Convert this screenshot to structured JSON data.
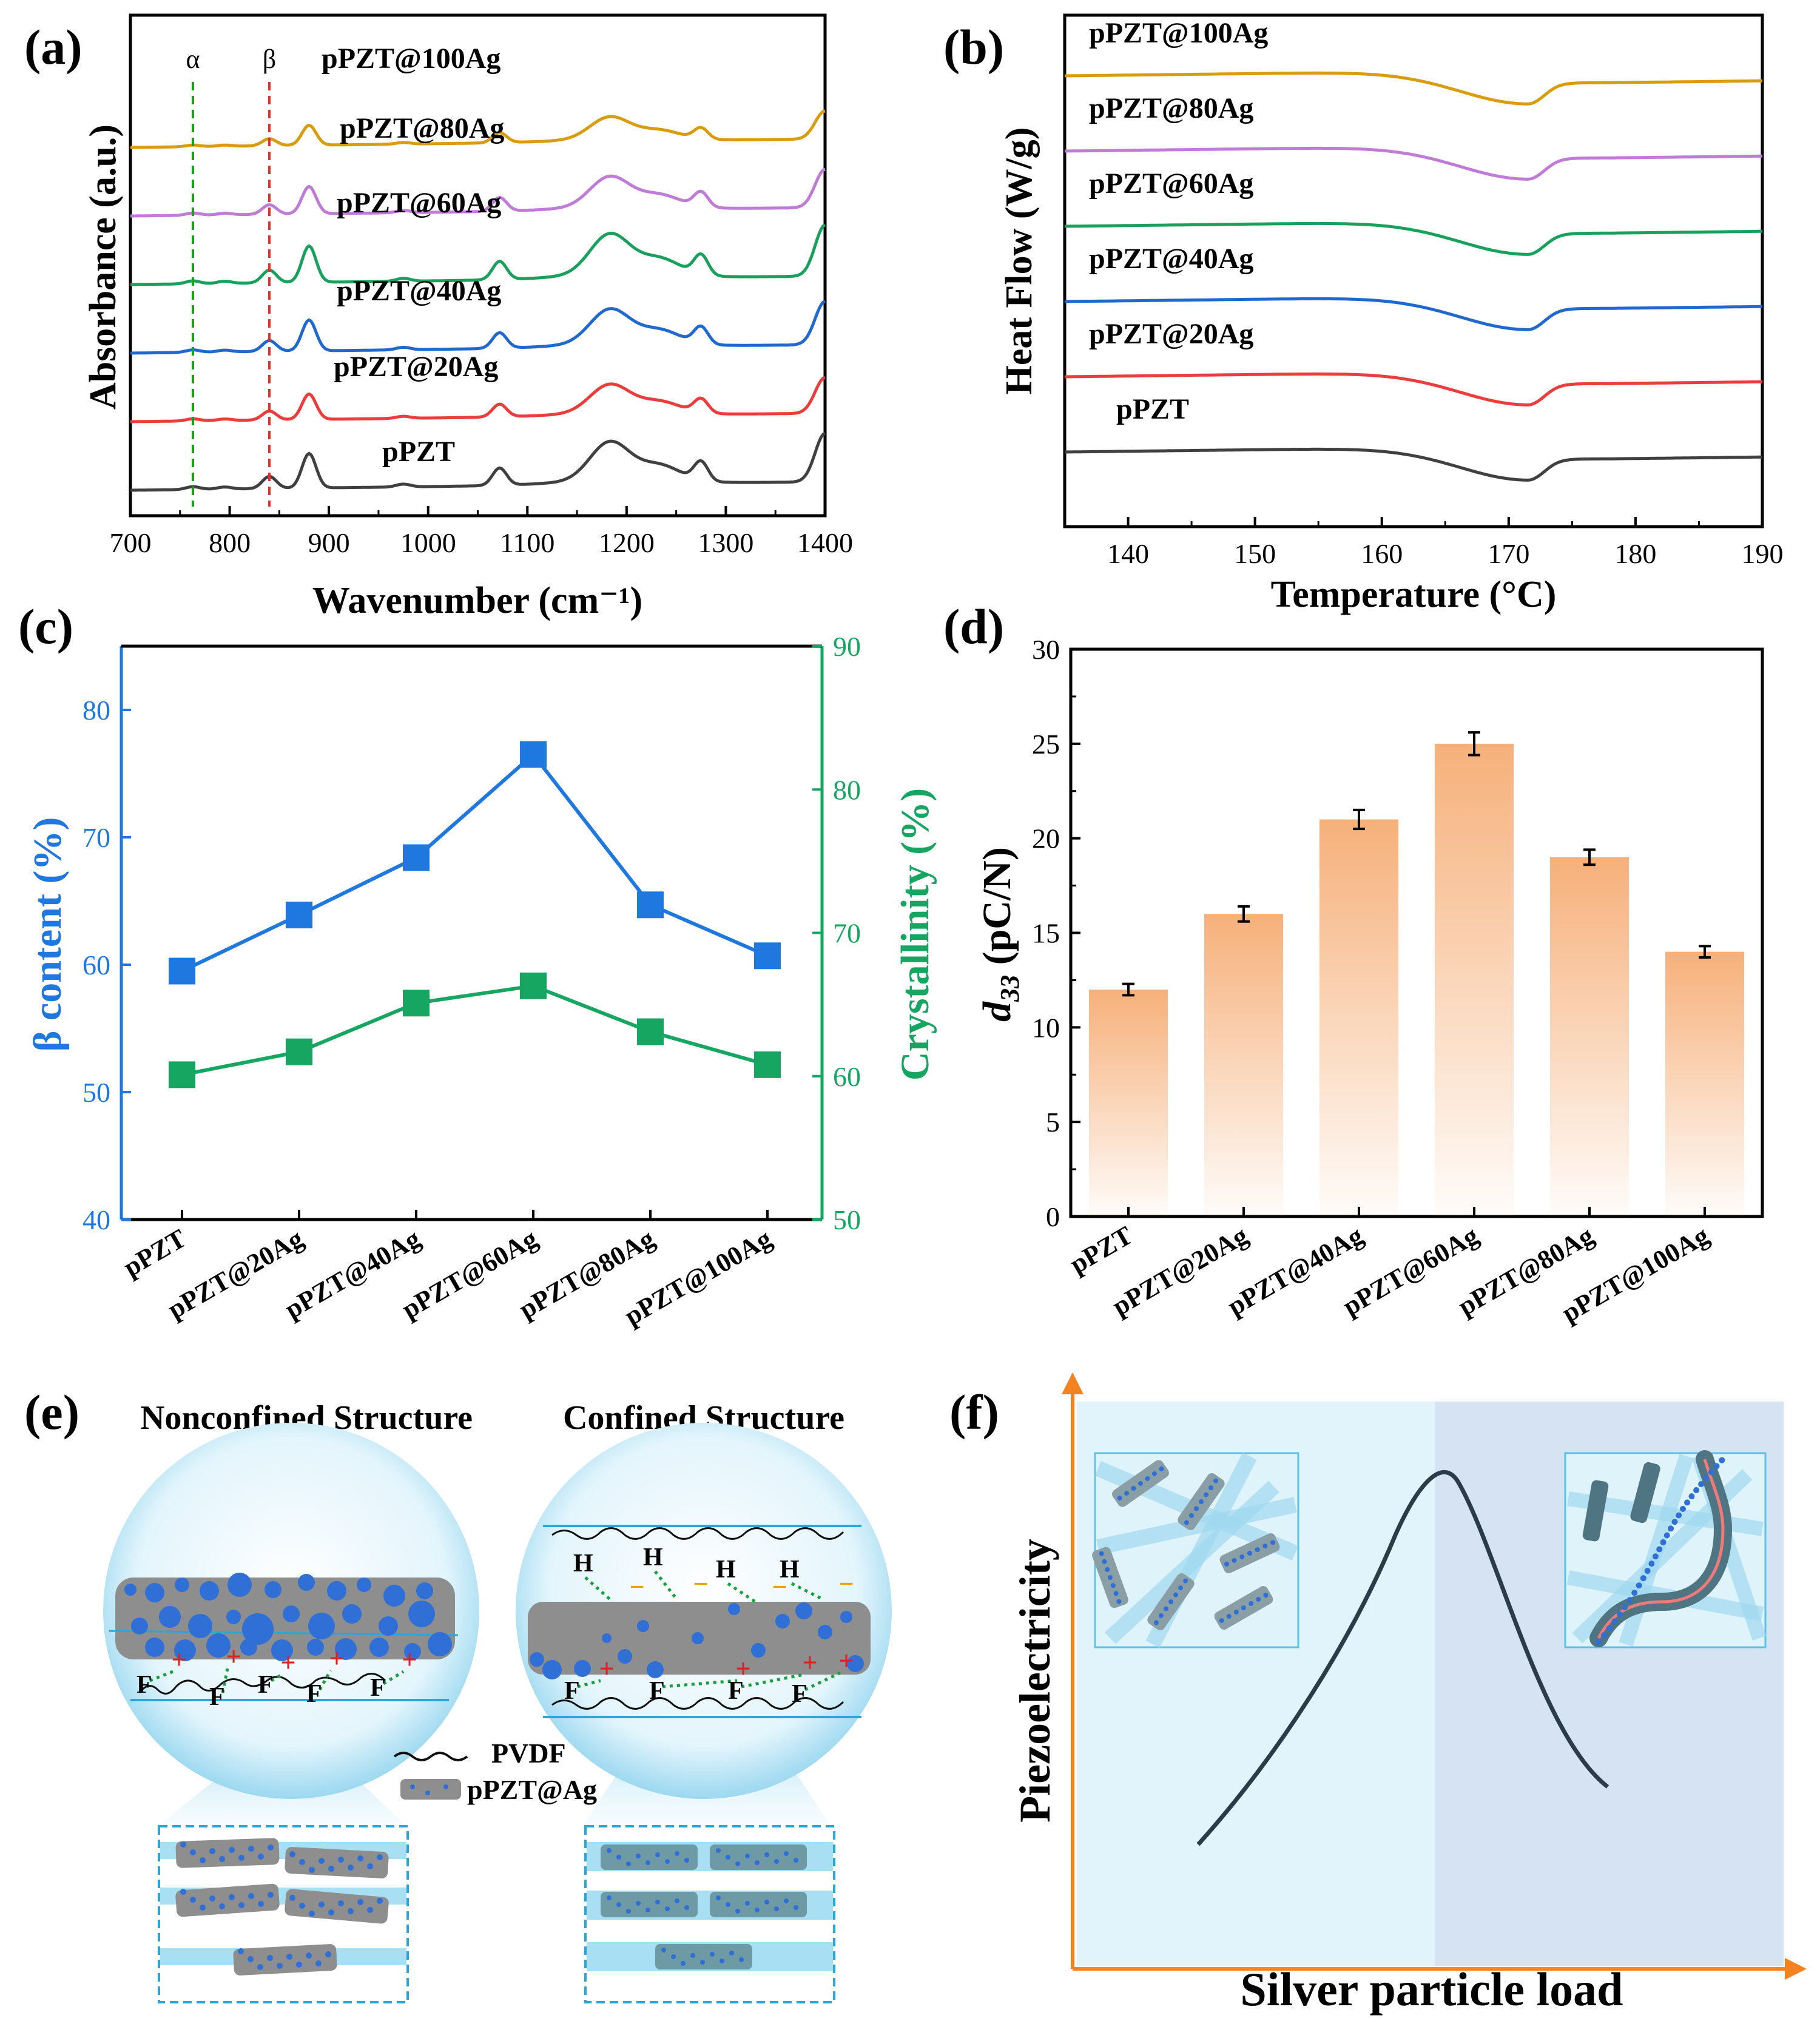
{
  "panel_labels": {
    "a": "(a)",
    "b": "(b)",
    "c": "(c)",
    "d": "(d)",
    "e": "(e)",
    "f": "(f)"
  },
  "chart_data": [
    {
      "id": "a",
      "type": "line",
      "xlabel": "Wavenumber (cm⁻¹)",
      "ylabel": "Absorbance (a.u.)",
      "xlim": [
        700,
        1400
      ],
      "xticks": [
        "700",
        "800",
        "900",
        "1000",
        "1100",
        "1200",
        "1300",
        "1400"
      ],
      "markers": [
        {
          "label": "α",
          "x": 763,
          "color": "#1aa01a"
        },
        {
          "label": "β",
          "x": 840,
          "color": "#e23030"
        }
      ],
      "series": [
        {
          "name": "pPZT@100Ag",
          "color": "#d89c0c",
          "offset": 5
        },
        {
          "name": "pPZT@80Ag",
          "color": "#c07ad8",
          "offset": 4
        },
        {
          "name": "pPZT@60Ag",
          "color": "#18a05c",
          "offset": 3
        },
        {
          "name": "pPZT@40Ag",
          "color": "#1e68d0",
          "offset": 2
        },
        {
          "name": "pPZT@20Ag",
          "color": "#ec3c3c",
          "offset": 1
        },
        {
          "name": "pPZT",
          "color": "#404040",
          "offset": 0
        }
      ],
      "peaks": [
        {
          "x": 763,
          "rel": 0.08
        },
        {
          "x": 795,
          "rel": 0.06
        },
        {
          "x": 840,
          "rel": 0.35
        },
        {
          "x": 880,
          "rel": 1.0
        },
        {
          "x": 975,
          "rel": 0.08
        },
        {
          "x": 1072,
          "rel": 0.5
        },
        {
          "x": 1183,
          "rel": 1.1
        },
        {
          "x": 1233,
          "rel": 0.45
        },
        {
          "x": 1275,
          "rel": 0.55
        },
        {
          "x": 1400,
          "rel": 1.4
        }
      ]
    },
    {
      "id": "b",
      "type": "line",
      "xlabel": "Temperature (°C)",
      "ylabel": "Heat Flow (W/g)",
      "xlim": [
        135,
        190
      ],
      "xticks": [
        "140",
        "150",
        "160",
        "170",
        "180",
        "190"
      ],
      "endotherm_peak_c": 171.5,
      "series": [
        {
          "name": "pPZT@100Ag",
          "color": "#d89c0c",
          "offset": 5
        },
        {
          "name": "pPZT@80Ag",
          "color": "#c07ad8",
          "offset": 4
        },
        {
          "name": "pPZT@60Ag",
          "color": "#18a05c",
          "offset": 3
        },
        {
          "name": "pPZT@40Ag",
          "color": "#1e68d0",
          "offset": 2
        },
        {
          "name": "pPZT@20Ag",
          "color": "#ec3c3c",
          "offset": 1
        },
        {
          "name": "pPZT",
          "color": "#404040",
          "offset": 0
        }
      ]
    },
    {
      "id": "c",
      "type": "line",
      "categories": [
        "pPZT",
        "pPZT@20Ag",
        "pPZT@40Ag",
        "pPZT@60Ag",
        "pPZT@80Ag",
        "pPZT@100Ag"
      ],
      "ylabel": "β content (%)",
      "ylabel_right": "Crystallinity (%)",
      "ylim": [
        40,
        85
      ],
      "yticks": [
        "40",
        "50",
        "60",
        "70",
        "80"
      ],
      "ylim_right": [
        50,
        90
      ],
      "yticks_right": [
        "50",
        "60",
        "70",
        "80",
        "90"
      ],
      "series": [
        {
          "name": "β content",
          "axis": "left",
          "color": "#1e78e0",
          "values": [
            59.5,
            63.9,
            68.4,
            76.5,
            64.7,
            60.7
          ]
        },
        {
          "name": "Crystallinity",
          "axis": "right",
          "color": "#17a662",
          "values": [
            60.1,
            61.7,
            65.1,
            66.3,
            63.1,
            60.8
          ]
        }
      ]
    },
    {
      "id": "d",
      "type": "bar",
      "categories": [
        "pPZT",
        "pPZT@20Ag",
        "pPZT@40Ag",
        "pPZT@60Ag",
        "pPZT@80Ag",
        "pPZT@100Ag"
      ],
      "values": [
        12,
        16,
        21,
        25,
        19,
        14
      ],
      "errors": [
        0.3,
        0.4,
        0.5,
        0.6,
        0.4,
        0.3
      ],
      "ylabel_main": "d",
      "ylabel_sub": "33",
      "ylabel_unit": " (pC/N)",
      "ylim": [
        0,
        30
      ],
      "yticks": [
        "0",
        "5",
        "10",
        "15",
        "20",
        "25",
        "30"
      ],
      "bar_color": "#f6b07a"
    }
  ],
  "panel_e": {
    "title_left": "Nonconfined Structure",
    "title_right": "Confined Structure",
    "legend_pvdf": "PVDF",
    "legend_pzt": "pPZT@Ag",
    "f": "F",
    "h": "H",
    "plus": "+",
    "minus": "−"
  },
  "panel_f": {
    "xlabel": "Silver particle load",
    "ylabel": "Piezoelectricity"
  }
}
